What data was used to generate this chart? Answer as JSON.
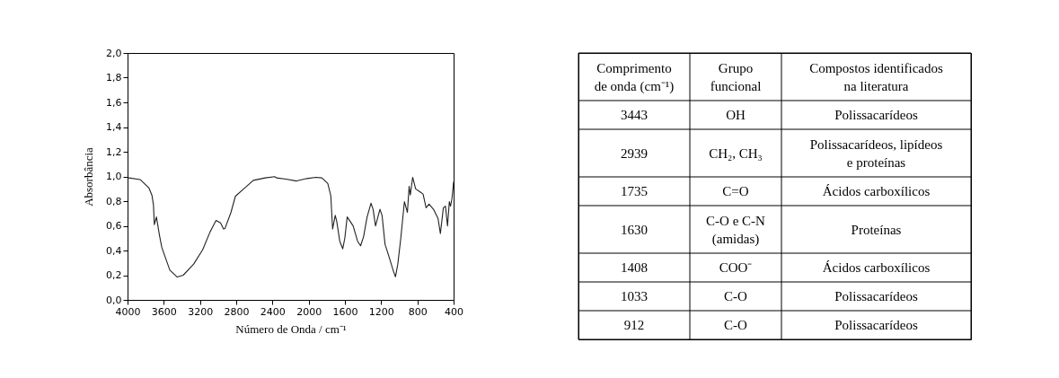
{
  "chart_data": [
    {
      "type": "line",
      "xlabel": "Número de Onda / cm⁻¹",
      "ylabel": "Absorbância",
      "grid": false,
      "marker": "none",
      "line_style": "solid",
      "xlim": [
        4000,
        400
      ],
      "xticks": [
        4000,
        3600,
        3200,
        2800,
        2400,
        2000,
        1600,
        1200,
        800,
        400
      ],
      "ylim": [
        0,
        2
      ],
      "yticks": [
        {
          "value": 0,
          "label": "0,0"
        },
        {
          "value": 0.2,
          "label": "0,2"
        },
        {
          "value": 0.4,
          "label": "0,4"
        },
        {
          "value": 0.6,
          "label": "0,6"
        },
        {
          "value": 0.8,
          "label": "0,8"
        },
        {
          "value": 1.0,
          "label": "1,0"
        },
        {
          "value": 1.2,
          "label": "1,2"
        },
        {
          "value": 1.4,
          "label": "1,4"
        },
        {
          "value": 1.6,
          "label": "1,6"
        },
        {
          "value": 1.8,
          "label": "1,8"
        },
        {
          "value": 2.0,
          "label": "2,0"
        }
      ],
      "series": [
        {
          "color": "#222222",
          "x": [
            4000,
            3862,
            3763,
            3730,
            3714,
            3704,
            3681,
            3648,
            3622,
            3599,
            3533,
            3451,
            3385,
            3270,
            3171,
            3089,
            3023,
            2973,
            2940,
            2924,
            2858,
            2809,
            2726,
            2611,
            2480,
            2374,
            2355,
            2250,
            2134,
            2019,
            1920,
            1855,
            1789,
            1756,
            1736,
            1707,
            1690,
            1657,
            1624,
            1601,
            1575,
            1509,
            1460,
            1427,
            1394,
            1355,
            1312,
            1289,
            1262,
            1213,
            1190,
            1157,
            1114,
            1065,
            1042,
            1016,
            983,
            943,
            910,
            891,
            878,
            852,
            819,
            770,
            737,
            704,
            671,
            622,
            572,
            546,
            513,
            490,
            467,
            447,
            434,
            418,
            400
          ],
          "values": [
            0.99,
            0.975,
            0.906,
            0.845,
            0.77,
            0.61,
            0.672,
            0.525,
            0.426,
            0.377,
            0.241,
            0.185,
            0.2,
            0.29,
            0.406,
            0.55,
            0.643,
            0.623,
            0.574,
            0.579,
            0.709,
            0.84,
            0.894,
            0.968,
            0.988,
            0.998,
            0.988,
            0.978,
            0.963,
            0.983,
            0.993,
            0.988,
            0.943,
            0.845,
            0.574,
            0.685,
            0.635,
            0.475,
            0.414,
            0.5,
            0.672,
            0.599,
            0.475,
            0.438,
            0.512,
            0.672,
            0.783,
            0.734,
            0.599,
            0.734,
            0.685,
            0.45,
            0.352,
            0.234,
            0.187,
            0.29,
            0.5,
            0.796,
            0.709,
            0.919,
            0.85,
            0.993,
            0.899,
            0.874,
            0.857,
            0.746,
            0.776,
            0.734,
            0.66,
            0.537,
            0.746,
            0.759,
            0.599,
            0.796,
            0.759,
            0.82,
            0.956
          ]
        }
      ]
    },
    {
      "type": "other",
      "annotations": [
        "Comprimento\nde onda (cm⁻¹)",
        "Grupo\nfuncional",
        "Compostos identificados\nna literatura",
        "3443",
        "OH",
        "Polissacarídeos",
        "2939",
        "CH₂, CH₃",
        "Polissacarídeos, lipídeos\ne proteínas",
        "1735",
        "C=O",
        "Ácidos carboxílicos",
        "1630",
        "C-O e C-N\n(amidas)",
        "Proteínas",
        "1408",
        "COO⁻",
        "Ácidos carboxílicos",
        "1033",
        "C-O",
        "Polissacarídeos",
        "912",
        "C-O",
        "Polissacarídeos"
      ]
    }
  ]
}
